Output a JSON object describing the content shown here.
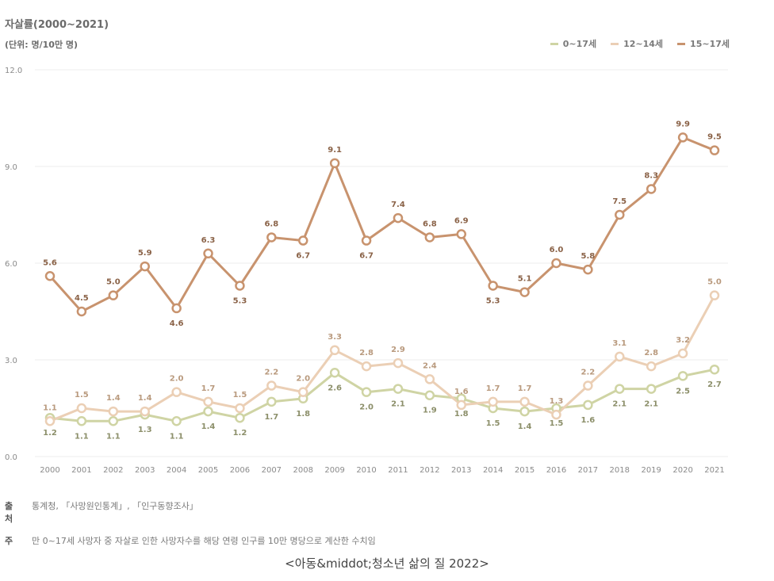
{
  "header": {
    "title": "자살률(2000~2021)",
    "unit": "(단위: 명/10만 명)"
  },
  "chart_data": {
    "type": "line",
    "title": "자살률(2000~2021)",
    "ylabel": "(단위: 명/10만 명)",
    "ylim": [
      0,
      12
    ],
    "yticks": [
      "0.0",
      "3.0",
      "6.0",
      "9.0",
      "12.0"
    ],
    "ytick_values": [
      0,
      3,
      6,
      9,
      12
    ],
    "legend_position": "top-right",
    "categories": [
      "2000",
      "2001",
      "2002",
      "2003",
      "2004",
      "2005",
      "2006",
      "2007",
      "2008",
      "2009",
      "2010",
      "2011",
      "2012",
      "2013",
      "2014",
      "2015",
      "2016",
      "2017",
      "2018",
      "2019",
      "2020",
      "2021"
    ],
    "series": [
      {
        "name": "0~17세",
        "color": "#cfd4a4",
        "values": [
          1.2,
          1.1,
          1.1,
          1.3,
          1.1,
          1.4,
          1.2,
          1.7,
          1.8,
          2.6,
          2.0,
          2.1,
          1.9,
          1.8,
          1.5,
          1.4,
          1.5,
          1.6,
          2.1,
          2.1,
          2.5,
          2.7
        ],
        "labels": [
          "1.2",
          "1.1",
          "1.1",
          "1.3",
          "1.1",
          "1.4",
          "1.2",
          "1.7",
          "1.8",
          "2.6",
          "2.0",
          "2.1",
          "1.9",
          "1.8",
          "1.5",
          "1.4",
          "1.5",
          "1.6",
          "2.1",
          "2.1",
          "2.5",
          "2.7"
        ]
      },
      {
        "name": "12~14세",
        "color": "#ebcfb5",
        "values": [
          1.1,
          1.5,
          1.4,
          1.4,
          2.0,
          1.7,
          1.5,
          2.2,
          2.0,
          3.3,
          2.8,
          2.9,
          2.4,
          1.6,
          1.7,
          1.7,
          1.3,
          2.2,
          3.1,
          2.8,
          3.2,
          5.0
        ],
        "labels": [
          "1.1",
          "1.5",
          "1.4",
          "1.4",
          "2.0",
          "1.7",
          "1.5",
          "2.2",
          "2.0",
          "3.3",
          "2.8",
          "2.9",
          "2.4",
          "1.6",
          "1.7",
          "1.7",
          "1.3",
          "2.2",
          "3.1",
          "2.8",
          "3.2",
          "5.0"
        ]
      },
      {
        "name": "15~17세",
        "color": "#c8936e",
        "values": [
          5.6,
          4.5,
          5.0,
          5.9,
          4.6,
          6.3,
          5.3,
          6.8,
          6.7,
          9.1,
          6.7,
          7.4,
          6.8,
          6.9,
          5.3,
          5.1,
          6.0,
          5.8,
          7.5,
          8.3,
          9.9,
          9.5
        ],
        "labels": [
          "5.6",
          "4.5",
          "5.0",
          "5.9",
          "4.6",
          "6.3",
          "5.3",
          "6.8",
          "6.7",
          "9.1",
          "6.7",
          "7.4",
          "6.8",
          "6.9",
          "5.3",
          "5.1",
          "6.0",
          "5.8",
          "7.5",
          "8.3",
          "9.9",
          "9.5"
        ]
      }
    ]
  },
  "notes": {
    "source_label": "출처",
    "source_text": "통계청, 「사망원인통계」, 「인구동향조사」",
    "note_label": "주",
    "note_text": "만 0~17세 사망자 중 자살로 인한 사망자수를 해당 연령 인구를 10만 명당으로 계산한 수치임"
  },
  "caption": "<아동&middot;청소년 삶의 질 2022>"
}
